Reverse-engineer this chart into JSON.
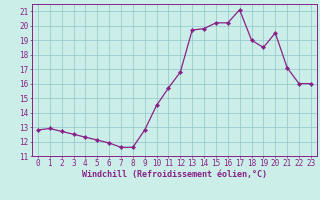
{
  "x": [
    0,
    1,
    2,
    3,
    4,
    5,
    6,
    7,
    8,
    9,
    10,
    11,
    12,
    13,
    14,
    15,
    16,
    17,
    18,
    19,
    20,
    21,
    22,
    23
  ],
  "y": [
    12.8,
    12.9,
    12.7,
    12.5,
    12.3,
    12.1,
    11.9,
    11.6,
    11.6,
    12.8,
    14.5,
    15.7,
    16.8,
    19.7,
    19.8,
    20.2,
    20.2,
    21.1,
    19.0,
    18.5,
    19.5,
    17.1,
    16.0,
    16.0
  ],
  "line_color": "#882288",
  "marker": "D",
  "marker_size": 2.2,
  "bg_color": "#cceee8",
  "grid_color": "#99cccc",
  "xlabel": "Windchill (Refroidissement éolien,°C)",
  "ylabel_ticks": [
    11,
    12,
    13,
    14,
    15,
    16,
    17,
    18,
    19,
    20,
    21
  ],
  "xlim": [
    -0.5,
    23.5
  ],
  "ylim": [
    11.0,
    21.5
  ],
  "tick_fontsize": 5.5,
  "xlabel_fontsize": 6.0
}
